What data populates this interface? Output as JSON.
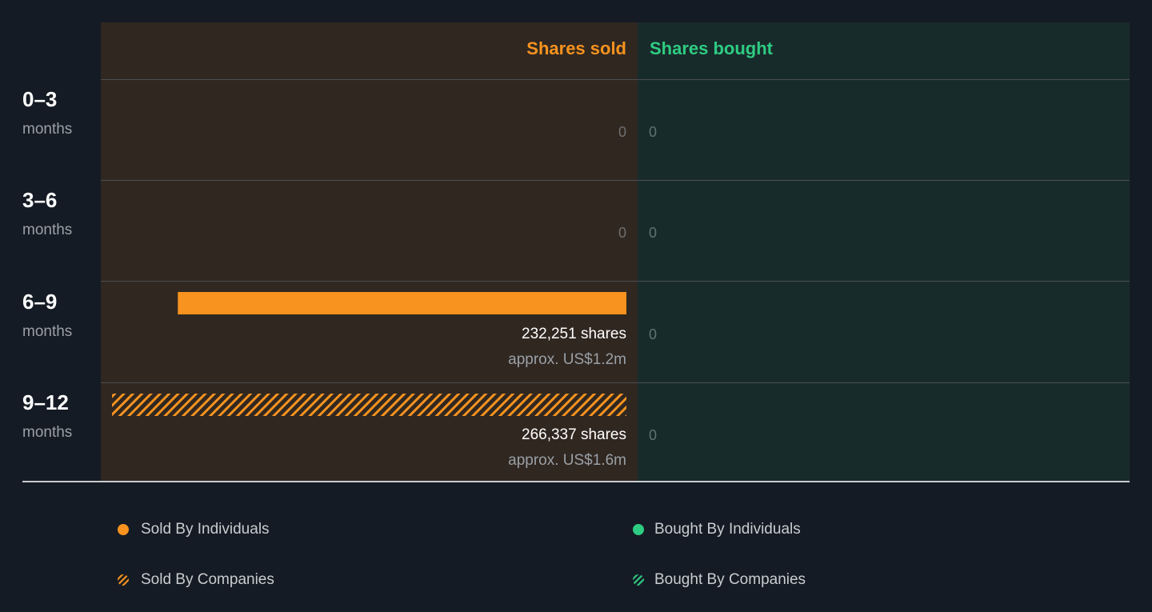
{
  "headers": {
    "sold": "Shares sold",
    "bought": "Shares bought"
  },
  "colors": {
    "sold": "#f7931e",
    "bought": "#2ecc82"
  },
  "rows": [
    {
      "period": "0–3",
      "unit": "months",
      "sold_zero": "0",
      "bought_zero": "0"
    },
    {
      "period": "3–6",
      "unit": "months",
      "sold_zero": "0",
      "bought_zero": "0"
    },
    {
      "period": "6–9",
      "unit": "months",
      "shares": "232,251 shares",
      "approx": "approx. US$1.2m",
      "bought_zero": "0"
    },
    {
      "period": "9–12",
      "unit": "months",
      "shares": "266,337 shares",
      "approx": "approx. US$1.6m",
      "bought_zero": "0"
    }
  ],
  "legend": {
    "sold_individuals": "Sold By Individuals",
    "bought_individuals": "Bought By Individuals",
    "sold_companies": "Sold By Companies",
    "bought_companies": "Bought By Companies"
  },
  "chart_data": {
    "type": "bar",
    "categories": [
      "0–3 months",
      "3–6 months",
      "6–9 months",
      "9–12 months"
    ],
    "series": [
      {
        "name": "Sold By Individuals",
        "values": [
          0,
          0,
          232251,
          0
        ]
      },
      {
        "name": "Sold By Companies",
        "values": [
          0,
          0,
          0,
          266337
        ]
      },
      {
        "name": "Bought By Individuals",
        "values": [
          0,
          0,
          0,
          0
        ]
      },
      {
        "name": "Bought By Companies",
        "values": [
          0,
          0,
          0,
          0
        ]
      }
    ],
    "orientation": "horizontal",
    "legend_position": "bottom",
    "grid": false
  }
}
